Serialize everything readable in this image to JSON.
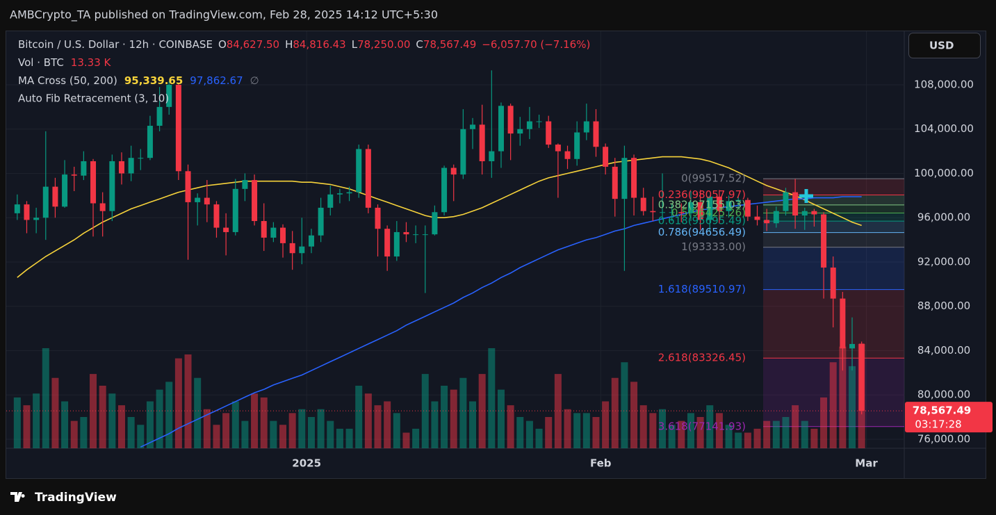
{
  "header": {
    "publisher": "AMBCrypto_TA published on TradingView.com, Feb 28, 2025 14:12 UTC+5:30"
  },
  "currency_button": "USD",
  "footer": {
    "brand": "TradingView"
  },
  "legend": {
    "symbol": "Bitcoin / U.S. Dollar · 12h · COINBASE",
    "o_label": "O",
    "open": "84,627.50",
    "h_label": "H",
    "high": "84,816.43",
    "l_label": "L",
    "low": "78,250.00",
    "c_label": "C",
    "close": "78,567.49",
    "change": "−6,057.70 (−7.16%)",
    "volume_title": "Vol · BTC",
    "volume": "13.33 K",
    "ma_title": "MA Cross (50, 200)",
    "ma50": "95,339.65",
    "ma200": "97,862.67",
    "ma_icon": "∅",
    "fib_title": "Auto Fib Retracement (3, 10)"
  },
  "chart_data": {
    "type": "candlestick",
    "open": [
      96400,
      97200,
      95800,
      96000,
      98800,
      97000,
      99900,
      99800,
      101100,
      97300,
      96600,
      101100,
      100000,
      101400,
      101400,
      104300,
      106000,
      108000,
      100200,
      97400,
      97800,
      97200,
      95100,
      94700,
      98600,
      99400,
      95700,
      94200,
      95100,
      93700,
      92800,
      93400,
      94400,
      96900,
      98100,
      98200,
      98300,
      102200,
      96900,
      95000,
      92500,
      94700,
      94500,
      94500,
      94500,
      96500,
      100500,
      99900,
      104000,
      104400,
      101100,
      102000,
      106100,
      103600,
      104000,
      104700,
      104700,
      102600,
      102000,
      101300,
      103700,
      104700,
      102400,
      100600,
      97700,
      101400,
      97800,
      96600,
      96500,
      96500,
      96500,
      96400,
      97400,
      95800,
      97900,
      96600,
      97500,
      97600,
      96100,
      95800,
      95500,
      96600,
      98300,
      96200,
      96600,
      96300,
      91500,
      88700,
      84200,
      84627.5
    ],
    "high": [
      98100,
      97500,
      96900,
      103800,
      99600,
      101200,
      100600,
      102000,
      101300,
      98300,
      101700,
      101900,
      102500,
      102200,
      105200,
      107800,
      108300,
      108200,
      100800,
      98200,
      99400,
      97500,
      96400,
      99500,
      100000,
      99900,
      97300,
      95600,
      95400,
      94800,
      96000,
      95000,
      97800,
      98900,
      98600,
      98800,
      102600,
      102600,
      97200,
      95300,
      95700,
      95600,
      95300,
      95300,
      97100,
      100700,
      100800,
      105800,
      105000,
      106200,
      109300,
      106400,
      106300,
      105100,
      106000,
      105300,
      105200,
      102700,
      102500,
      104700,
      106300,
      105800,
      102700,
      101400,
      102500,
      101700,
      98700,
      97900,
      100000,
      97200,
      97300,
      98400,
      98500,
      98000,
      98500,
      98000,
      97900,
      97800,
      97100,
      96800,
      97000,
      98700,
      99500,
      96900,
      96800,
      96500,
      92500,
      89300,
      87000,
      84816.43
    ],
    "low": [
      95800,
      94600,
      94600,
      94000,
      96000,
      96900,
      98400,
      99400,
      94300,
      94300,
      95700,
      99000,
      99300,
      100300,
      101200,
      103800,
      105300,
      99400,
      92200,
      95300,
      95600,
      94200,
      92600,
      94400,
      97500,
      95300,
      93000,
      93800,
      92400,
      91300,
      91800,
      92800,
      93800,
      96200,
      97300,
      97500,
      97800,
      96400,
      92500,
      91200,
      92100,
      93800,
      93700,
      89200,
      94400,
      96200,
      97500,
      99500,
      102200,
      99900,
      99600,
      100500,
      101200,
      102500,
      103100,
      104100,
      102300,
      97800,
      100400,
      100700,
      103000,
      101500,
      99900,
      96100,
      91200,
      96200,
      96200,
      95700,
      95800,
      95700,
      95600,
      95700,
      94900,
      94700,
      95500,
      96000,
      96800,
      95700,
      95300,
      94800,
      95100,
      96200,
      95000,
      94900,
      95200,
      88700,
      86100,
      82200,
      82200,
      78250
    ],
    "close": [
      97200,
      95800,
      96000,
      98800,
      97000,
      99900,
      99800,
      101100,
      97300,
      96600,
      101100,
      100000,
      101400,
      101400,
      104300,
      106000,
      108000,
      100200,
      97400,
      97800,
      97200,
      95100,
      94700,
      98600,
      99400,
      95700,
      94200,
      95100,
      93700,
      92800,
      93400,
      94400,
      96900,
      98100,
      98200,
      98300,
      102200,
      96900,
      95000,
      92500,
      94700,
      94500,
      94500,
      94500,
      96500,
      100500,
      99900,
      104000,
      104400,
      101100,
      102000,
      106100,
      103600,
      104000,
      104700,
      104700,
      102600,
      102000,
      101300,
      103700,
      104700,
      102400,
      100600,
      97700,
      101400,
      97800,
      96600,
      96500,
      96500,
      96500,
      96400,
      97400,
      95800,
      97900,
      96600,
      97500,
      97600,
      96100,
      95800,
      95500,
      96600,
      98300,
      96200,
      96600,
      96300,
      91500,
      88700,
      84200,
      84600,
      78567.49
    ],
    "volume": [
      6500,
      5500,
      7000,
      12800,
      9000,
      6000,
      3500,
      4000,
      9500,
      8000,
      7000,
      5500,
      4000,
      3000,
      6000,
      7500,
      8500,
      11500,
      12000,
      9000,
      5000,
      3000,
      4500,
      6000,
      3500,
      7000,
      6500,
      3500,
      3000,
      4500,
      5000,
      4000,
      5000,
      3500,
      2500,
      2500,
      8000,
      7000,
      5500,
      6000,
      4500,
      2000,
      2500,
      9500,
      6000,
      8000,
      7500,
      9000,
      6000,
      9500,
      12800,
      7500,
      5500,
      4000,
      3500,
      2500,
      4000,
      9500,
      5000,
      4500,
      4500,
      4000,
      6000,
      9000,
      11000,
      8500,
      5500,
      4500,
      5000,
      3000,
      3500,
      4500,
      4000,
      5500,
      4500,
      3000,
      2000,
      2000,
      2500,
      3500,
      3500,
      4000,
      5500,
      3500,
      2500,
      6500,
      11000,
      13000,
      10500,
      13330
    ],
    "up_color": "#089981",
    "down_color": "#f23645",
    "moving_averages": [
      {
        "color": "#f7d33b",
        "values": [
          90600,
          91300,
          91900,
          92500,
          93000,
          93500,
          94000,
          94600,
          95100,
          95600,
          96000,
          96400,
          96800,
          97100,
          97400,
          97700,
          98000,
          98300,
          98500,
          98700,
          98900,
          99000,
          99100,
          99200,
          99300,
          99300,
          99300,
          99300,
          99300,
          99300,
          99200,
          99200,
          99100,
          99000,
          98800,
          98600,
          98300,
          98000,
          97700,
          97400,
          97100,
          96800,
          96500,
          96200,
          96000,
          96000,
          96100,
          96300,
          96600,
          96900,
          97300,
          97700,
          98100,
          98500,
          98900,
          99300,
          99600,
          99800,
          100000,
          100200,
          100400,
          100600,
          100800,
          101000,
          101100,
          101200,
          101300,
          101400,
          101500,
          101500,
          101500,
          101400,
          101300,
          101100,
          100800,
          100500,
          100100,
          99700,
          99300,
          98900,
          98600,
          98300,
          98000,
          97600,
          97200,
          96800,
          96400,
          96000,
          95600,
          95300
        ]
      },
      {
        "color": "#2962ff",
        "values": [
          null,
          null,
          null,
          null,
          null,
          null,
          null,
          null,
          null,
          null,
          null,
          null,
          null,
          75300,
          75700,
          76100,
          76500,
          77000,
          77400,
          77800,
          78200,
          78600,
          79000,
          79400,
          79800,
          80200,
          80500,
          80900,
          81200,
          81500,
          81800,
          82200,
          82600,
          83000,
          83400,
          83800,
          84200,
          84600,
          85000,
          85400,
          85800,
          86300,
          86700,
          87100,
          87500,
          87900,
          88300,
          88800,
          89200,
          89700,
          90100,
          90600,
          91000,
          91500,
          91900,
          92300,
          92700,
          93100,
          93400,
          93700,
          94000,
          94200,
          94500,
          94800,
          95000,
          95300,
          95500,
          95700,
          95900,
          96100,
          96300,
          96500,
          96700,
          96800,
          96900,
          97000,
          97100,
          97200,
          97300,
          97400,
          97500,
          97600,
          97700,
          97700,
          97800,
          97800,
          97800,
          97900,
          97900,
          97900
        ]
      }
    ],
    "fib_levels": [
      {
        "label": "0(99517.52)",
        "price": 99517.52,
        "color": "#787b86"
      },
      {
        "label": "0.236(98057.97)",
        "price": 98057.97,
        "color": "#f23645"
      },
      {
        "label": "0.382(97155.03)",
        "price": 97155.03,
        "color": "#81c784"
      },
      {
        "label": "0.5(96425.26)",
        "price": 96425.26,
        "color": "#4caf50"
      },
      {
        "label": "0.618(95695.49)",
        "price": 95695.49,
        "color": "#089981"
      },
      {
        "label": "0.786(94656.49)",
        "price": 94656.49,
        "color": "#64b5f6"
      },
      {
        "label": "1(93333.00)",
        "price": 93333.0,
        "color": "#787b86"
      },
      {
        "label": "1.618(89510.97)",
        "price": 89510.97,
        "color": "#2962ff"
      },
      {
        "label": "2.618(83326.45)",
        "price": 83326.45,
        "color": "#f23645"
      },
      {
        "label": "3.618(77141.93)",
        "price": 77141.93,
        "color": "#9c27b0"
      }
    ],
    "last_price": {
      "value": 78567.49,
      "label": "78,567.49"
    },
    "countdown": "03:17:28",
    "ylim": [
      75184,
      112831
    ],
    "yticks": [
      {
        "value": 76000,
        "label": "76,000.00"
      },
      {
        "value": 80000,
        "label": "80,000.00"
      },
      {
        "value": 84000,
        "label": "84,000.00"
      },
      {
        "value": 88000,
        "label": "88,000.00"
      },
      {
        "value": 92000,
        "label": "92,000.00"
      },
      {
        "value": 96000,
        "label": "96,000.00"
      },
      {
        "value": 100000,
        "label": "100,000.00"
      },
      {
        "value": 104000,
        "label": "104,000.00"
      },
      {
        "value": 108000,
        "label": "108,000.00"
      }
    ],
    "xlim": [
      -0.22,
      93.92
    ],
    "xticks": [
      {
        "value": 31,
        "label": "2025"
      },
      {
        "value": 62,
        "label": "Feb"
      },
      {
        "value": 90,
        "label": "Mar"
      }
    ],
    "grid": true
  }
}
